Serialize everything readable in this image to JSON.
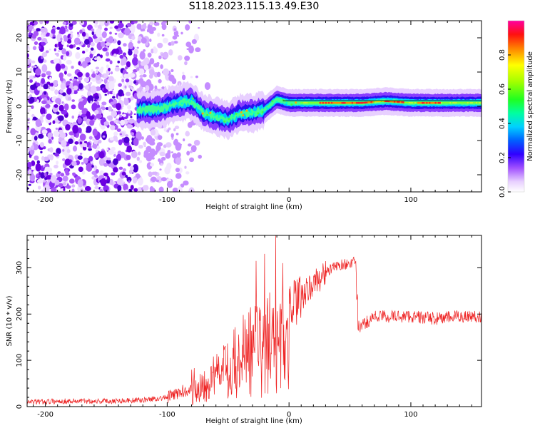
{
  "title": "S118.2023.115.13.49.E30",
  "chart_data": [
    {
      "type": "heatmap",
      "xlabel": "Height of straight line (km)",
      "ylabel": "Frequency (Hz)",
      "xlim": [
        -215,
        158
      ],
      "ylim": [
        -25,
        25
      ],
      "xticks": [
        -200,
        -100,
        0,
        100
      ],
      "xtick_labels": [
        "-200",
        "-100",
        "0",
        "100"
      ],
      "yticks": [
        -20,
        -10,
        0,
        10,
        20
      ],
      "ytick_labels": [
        "-20",
        "-10",
        "0",
        "10",
        "20"
      ],
      "grid": false,
      "colorbar": {
        "label": "Normalized spectral amplitude",
        "range": [
          0,
          1
        ],
        "ticks": [
          0,
          0.2,
          0.4,
          0.6,
          0.8
        ],
        "tick_labels": [
          "0.0",
          "0.2",
          "0.4",
          "0.6",
          "0.8"
        ]
      },
      "ridge_frequency": {
        "x": [
          -110,
          -100,
          -90,
          -80,
          -70,
          -60,
          -50,
          -40,
          -30,
          -20,
          -10,
          0,
          20,
          40,
          60,
          80,
          100,
          120,
          158
        ],
        "y": [
          -1,
          0,
          1,
          1.5,
          -2,
          -3,
          -4,
          -2,
          -2,
          -1,
          2,
          1,
          1,
          1,
          1,
          1.5,
          1,
          1,
          1
        ]
      },
      "noise_region_x": [
        -215,
        -95
      ]
    },
    {
      "type": "line",
      "xlabel": "Height of straight line (km)",
      "ylabel": "SNR (10 * v/v)",
      "xlim": [
        -215,
        158
      ],
      "ylim": [
        0,
        370
      ],
      "xticks": [
        -200,
        -100,
        0,
        100
      ],
      "xtick_labels": [
        "-200",
        "-100",
        "0",
        "100"
      ],
      "yticks": [
        0,
        100,
        200,
        300
      ],
      "ytick_labels": [
        "0",
        "100",
        "200",
        "300"
      ],
      "grid": false,
      "color": "#ee2222",
      "series_envelope": {
        "x": [
          -215,
          -180,
          -150,
          -120,
          -100,
          -90,
          -80,
          -70,
          -60,
          -50,
          -40,
          -30,
          -20,
          -10,
          0,
          10,
          20,
          30,
          40,
          50,
          55,
          56,
          60,
          70,
          80,
          100,
          120,
          140,
          158
        ],
        "y": [
          10,
          12,
          12,
          14,
          20,
          30,
          40,
          50,
          70,
          100,
          120,
          140,
          160,
          180,
          200,
          235,
          265,
          290,
          305,
          310,
          312,
          170,
          175,
          195,
          195,
          195,
          190,
          195,
          195
        ]
      },
      "spikes": [
        {
          "x": -27,
          "y": 315
        },
        {
          "x": -20,
          "y": 330
        },
        {
          "x": -11,
          "y": 370
        },
        {
          "x": -5,
          "y": 310
        },
        {
          "x": 1,
          "y": 260
        }
      ]
    }
  ]
}
